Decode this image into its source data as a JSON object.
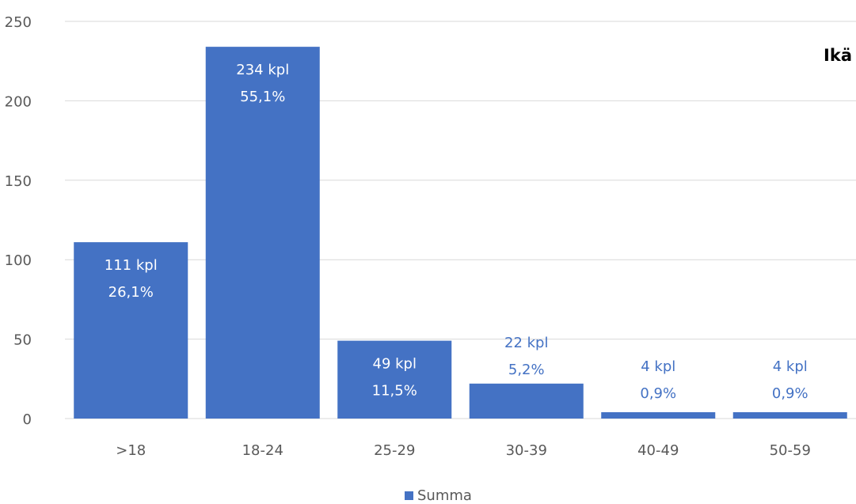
{
  "chart_data": {
    "type": "bar",
    "title": "Ikä",
    "categories": [
      ">18",
      "18-24",
      "25-29",
      "30-39",
      "40-49",
      "50-59"
    ],
    "series": [
      {
        "name": "Summa",
        "values": [
          111,
          234,
          49,
          22,
          4,
          4
        ],
        "data_labels": [
          [
            "111 kpl",
            "26,1%"
          ],
          [
            "234 kpl",
            "55,1%"
          ],
          [
            "49 kpl",
            "11,5%"
          ],
          [
            "22 kpl",
            "5,2%"
          ],
          [
            "4 kpl",
            "0,9%"
          ],
          [
            "4 kpl",
            "0,9%"
          ]
        ]
      }
    ],
    "ylim": [
      0,
      250
    ],
    "yticks": [
      0,
      50,
      100,
      150,
      200,
      250
    ],
    "xlabel": "",
    "ylabel": "",
    "grid": true,
    "legend_position": "bottom",
    "colors": {
      "bar": "#4472c4",
      "label_inside": "#ffffff",
      "label_outside": "#4472c4",
      "grid": "#d9d9d9",
      "tick_text": "#595959"
    }
  }
}
